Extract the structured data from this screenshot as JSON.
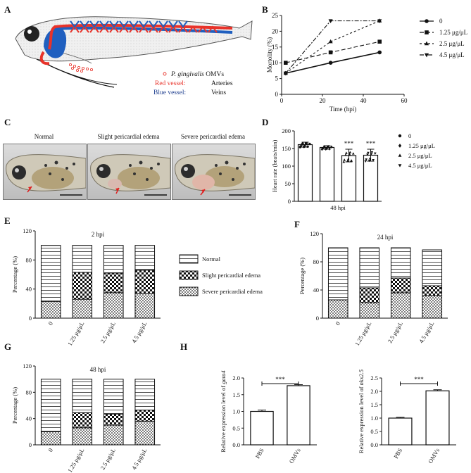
{
  "panels": {
    "A": {
      "label": "A",
      "legend": {
        "omv_prefix": "P. gingivalis",
        "omv_suffix": " OMVs",
        "red_label": "Red vessel:",
        "red_value": "Arteries",
        "blue_label": "Blue vessel:",
        "blue_value": "Veins"
      },
      "colors": {
        "artery": "#e8332a",
        "vein": "#1f5fbf"
      }
    },
    "B": {
      "label": "B"
    },
    "C": {
      "label": "C",
      "captions": [
        "Normal",
        "Slight pericardial edema",
        "Severe pericardial edema"
      ]
    },
    "D": {
      "label": "D"
    },
    "E": {
      "label": "E"
    },
    "F": {
      "label": "F"
    },
    "G": {
      "label": "G"
    },
    "H": {
      "label": "H"
    }
  },
  "chart_data": [
    {
      "id": "B",
      "type": "line",
      "xlabel": "Time (hpi)",
      "ylabel": "Mortolity (%)",
      "xlim": [
        0,
        60
      ],
      "ylim": [
        0,
        25
      ],
      "xticks": [
        0,
        20,
        40,
        60
      ],
      "yticks": [
        0,
        5,
        10,
        15,
        20,
        25
      ],
      "x": [
        2,
        24,
        48
      ],
      "series": [
        {
          "name": "0",
          "values": [
            6.7,
            10,
            13.3
          ],
          "marker": "circle",
          "dash": ""
        },
        {
          "name": "1.25  μg/μL",
          "values": [
            10,
            13.3,
            16.7
          ],
          "marker": "square",
          "dash": "6,3"
        },
        {
          "name": "2.5  μg/μL",
          "values": [
            6.7,
            16.7,
            23.3
          ],
          "marker": "triangle-up",
          "dash": "3,3"
        },
        {
          "name": "4.5  μg/μL",
          "values": [
            6.7,
            23.3,
            23.3
          ],
          "marker": "triangle-down",
          "dash": "6,2,2,2"
        }
      ],
      "legend_position": "right"
    },
    {
      "id": "D",
      "type": "bar",
      "xlabel": "48  hpi",
      "ylabel": "Heart rate (beats/min)",
      "ylim": [
        0,
        200
      ],
      "yticks": [
        0,
        50,
        100,
        150,
        200
      ],
      "categories": [
        "0",
        "1.25 μg/μL",
        "2.5 μg/μL",
        "4.5 μg/μL"
      ],
      "values": [
        161,
        153,
        130,
        131
      ],
      "errors": [
        7,
        5,
        18,
        17
      ],
      "significance": [
        "",
        "",
        "***",
        "***"
      ],
      "markers": [
        "circle",
        "diamond",
        "triangle-up",
        "triangle-down"
      ],
      "legend": [
        "0",
        "1.25 μg/μL",
        "2.5 μg/μL",
        "4.5 μg/μL"
      ],
      "legend_position": "right"
    },
    {
      "id": "E",
      "type": "bar",
      "stacked": true,
      "title": "2 hpi",
      "ylabel": "Percentage (%)",
      "ylim": [
        0,
        120
      ],
      "yticks": [
        0,
        40,
        80,
        120
      ],
      "categories": [
        "0",
        "1.25 μg/μL",
        "2.5 μg/μL",
        "4.5 μg/μL"
      ],
      "series": [
        {
          "name": "Severe pericardial edema",
          "values": [
            23,
            26,
            35,
            34
          ]
        },
        {
          "name": "Slight pericardial edema",
          "values": [
            0,
            37,
            27,
            32
          ]
        },
        {
          "name": "Normal",
          "values": [
            77,
            37,
            38,
            34
          ]
        }
      ],
      "legend": [
        "Normal",
        "Slight pericardial edema",
        "Severe pericardial edema"
      ],
      "legend_position": "right"
    },
    {
      "id": "F",
      "type": "bar",
      "stacked": true,
      "title": "24 hpi",
      "ylabel": "Percentage (%)",
      "ylim": [
        0,
        120
      ],
      "yticks": [
        0,
        40,
        80,
        120
      ],
      "categories": [
        "0",
        "1.25 μg/μL",
        "2.5 μg/μL",
        "4.5 μg/μL"
      ],
      "series": [
        {
          "name": "Severe pericardial edema",
          "values": [
            26,
            22,
            36,
            32
          ]
        },
        {
          "name": "Slight pericardial edema",
          "values": [
            0,
            21,
            21,
            14
          ]
        },
        {
          "name": "Normal",
          "values": [
            74,
            57,
            43,
            51
          ]
        }
      ]
    },
    {
      "id": "G",
      "type": "bar",
      "stacked": true,
      "title": "48 hpi",
      "ylabel": "Percentage (%)",
      "ylim": [
        0,
        120
      ],
      "yticks": [
        0,
        40,
        80,
        120
      ],
      "categories": [
        "0",
        "1.25 μg/μL",
        "2.5 μg/μL",
        "4.5 μg/μL"
      ],
      "series": [
        {
          "name": "Severe pericardial edema",
          "values": [
            20,
            26,
            30,
            36
          ]
        },
        {
          "name": "Slight pericardial edema",
          "values": [
            0,
            23,
            17,
            17
          ]
        },
        {
          "name": "Normal",
          "values": [
            80,
            51,
            53,
            47
          ]
        }
      ]
    },
    {
      "id": "H1",
      "type": "bar",
      "ylabel_prefix": "Relative expression level of ",
      "ylabel_gene": "gata4",
      "ylim": [
        0,
        2.0
      ],
      "yticks": [
        "0.0",
        "0.5",
        "1.0",
        "1.5",
        "2.0"
      ],
      "categories": [
        "PBS",
        "OMVs"
      ],
      "values": [
        1.0,
        1.77
      ],
      "errors": [
        0.04,
        0.03
      ],
      "significance": "***"
    },
    {
      "id": "H2",
      "type": "bar",
      "ylabel_prefix": "Relative expression level of ",
      "ylabel_gene": "nkx2.5",
      "ylim": [
        0,
        2.5
      ],
      "yticks": [
        "0.0",
        "0.5",
        "1.0",
        "1.5",
        "2.0",
        "2.5"
      ],
      "categories": [
        "PBS",
        "OMVs"
      ],
      "values": [
        1.0,
        2.02
      ],
      "errors": [
        0.03,
        0.04
      ],
      "significance": "***"
    }
  ]
}
